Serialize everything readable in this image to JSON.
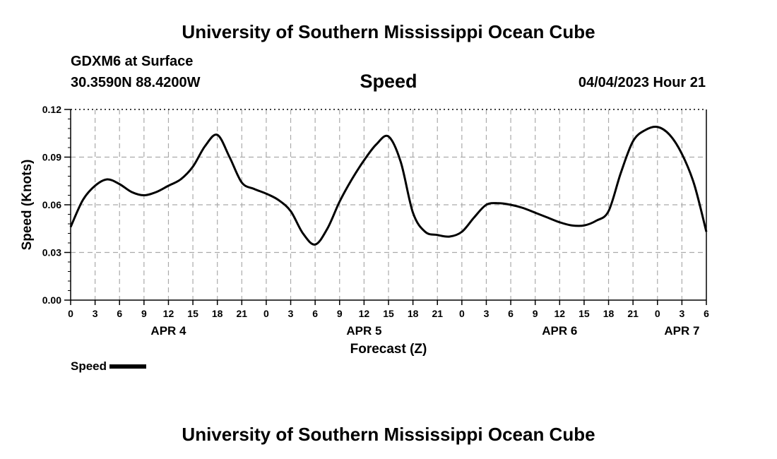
{
  "header": {
    "title": "University of Southern Mississippi Ocean Cube",
    "station": "GDXM6 at Surface",
    "coords": "30.3590N  88.4200W",
    "variable": "Speed",
    "datetime": "04/04/2023 Hour 21"
  },
  "footer": {
    "title": "University of Southern Mississippi Ocean Cube"
  },
  "legend": {
    "label": "Speed"
  },
  "chart_data": {
    "type": "line",
    "title": "Speed",
    "xlabel": "Forecast (Z)",
    "ylabel": "Speed (Knots)",
    "xlim": [
      0,
      78
    ],
    "ylim": [
      0,
      0.12
    ],
    "yticks": [
      "0.00",
      "0.03",
      "0.06",
      "0.09",
      "0.12"
    ],
    "xtick_labels": [
      "0",
      "3",
      "6",
      "9",
      "12",
      "15",
      "18",
      "21",
      "0",
      "3",
      "6",
      "9",
      "12",
      "15",
      "18",
      "21",
      "0",
      "3",
      "6",
      "9",
      "12",
      "15",
      "18",
      "21",
      "0",
      "3",
      "6"
    ],
    "date_labels": [
      {
        "label": "APR 4",
        "hour": 12
      },
      {
        "label": "APR 5",
        "hour": 36
      },
      {
        "label": "APR 6",
        "hour": 60
      },
      {
        "label": "APR 7",
        "hour": 75
      }
    ],
    "grid": true,
    "legend_position": "bottom-left",
    "series": [
      {
        "name": "Speed",
        "color": "#000000",
        "x": [
          0,
          1.5,
          3,
          4.5,
          6,
          7.5,
          9,
          10.5,
          12,
          13.5,
          15,
          16.5,
          18,
          19.5,
          21,
          22.5,
          24,
          25.5,
          27,
          28.5,
          30,
          31.5,
          33,
          34.5,
          36,
          37.5,
          39,
          40.5,
          42,
          43.5,
          45,
          46.5,
          48,
          49.5,
          51,
          52.5,
          54,
          55.5,
          57,
          58.5,
          60,
          61.5,
          63,
          64.5,
          66,
          67.5,
          69,
          70.5,
          72,
          73.5,
          75,
          76.5,
          78
        ],
        "y": [
          0.046,
          0.063,
          0.072,
          0.076,
          0.073,
          0.068,
          0.066,
          0.068,
          0.072,
          0.076,
          0.084,
          0.097,
          0.104,
          0.09,
          0.074,
          0.07,
          0.067,
          0.063,
          0.056,
          0.042,
          0.035,
          0.045,
          0.062,
          0.076,
          0.088,
          0.098,
          0.103,
          0.087,
          0.055,
          0.043,
          0.041,
          0.04,
          0.043,
          0.052,
          0.06,
          0.061,
          0.06,
          0.058,
          0.055,
          0.052,
          0.049,
          0.047,
          0.047,
          0.05,
          0.056,
          0.08,
          0.1,
          0.107,
          0.109,
          0.104,
          0.092,
          0.073,
          0.043
        ]
      }
    ]
  }
}
